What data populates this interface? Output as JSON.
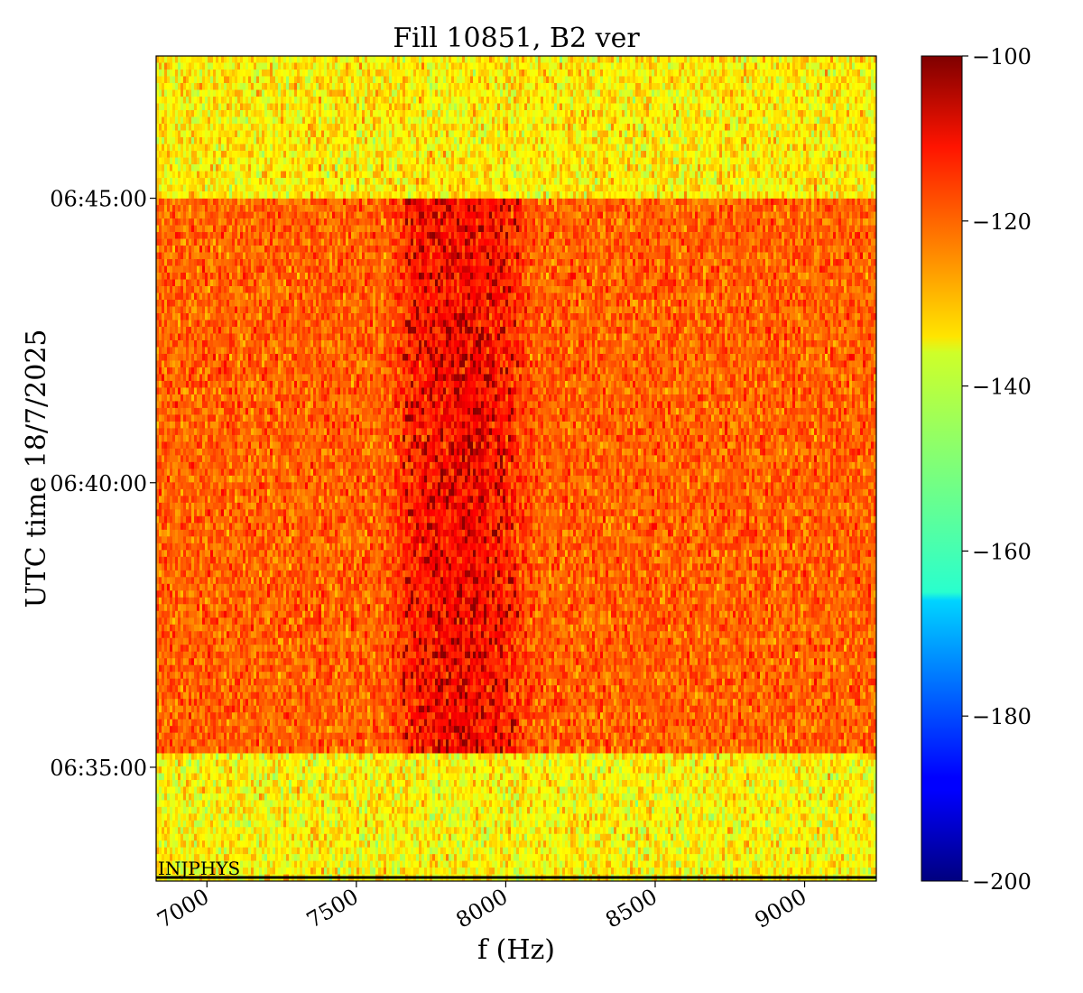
{
  "chart_data": {
    "type": "heatmap",
    "title": "Fill 10851, B2 ver",
    "xlabel": "f (Hz)",
    "ylabel": "UTC time 18/7/2025",
    "xlim": [
      6830,
      9240
    ],
    "ylim": [
      "06:33:00",
      "06:47:30"
    ],
    "x_ticks": [
      {
        "value": 7000,
        "label": "7000"
      },
      {
        "value": 7500,
        "label": "7500"
      },
      {
        "value": 8000,
        "label": "8000"
      },
      {
        "value": 8500,
        "label": "8500"
      },
      {
        "value": 9000,
        "label": "9000"
      }
    ],
    "y_ticks": [
      {
        "value": "06:35:00",
        "label": "06:35:00"
      },
      {
        "value": "06:40:00",
        "label": "06:40:00"
      },
      {
        "value": "06:45:00",
        "label": "06:45:00"
      }
    ],
    "colorbar": {
      "colormap": "jet",
      "range": [
        -200,
        -100
      ],
      "ticks": [
        {
          "value": -100,
          "label": "−100"
        },
        {
          "value": -120,
          "label": "−120"
        },
        {
          "value": -140,
          "label": "−140"
        },
        {
          "value": -160,
          "label": "−160"
        },
        {
          "value": -180,
          "label": "−180"
        },
        {
          "value": -200,
          "label": "−200"
        }
      ]
    },
    "regions": [
      {
        "time_start": "06:33:00",
        "time_end": "06:35:15",
        "level_dB": -137,
        "noise_dB": 6
      },
      {
        "time_start": "06:35:15",
        "time_end": "06:45:00",
        "level_dB": -122,
        "noise_dB": 5
      },
      {
        "time_start": "06:45:00",
        "time_end": "06:47:30",
        "level_dB": -136,
        "noise_dB": 6
      }
    ],
    "band": {
      "time_start": "06:35:15",
      "time_end": "06:45:00",
      "center_hz": 7850,
      "half_width_hz": 260,
      "peak_dB": -103
    },
    "annotation": {
      "text": "INJPHYS",
      "time": "06:33:00"
    }
  }
}
